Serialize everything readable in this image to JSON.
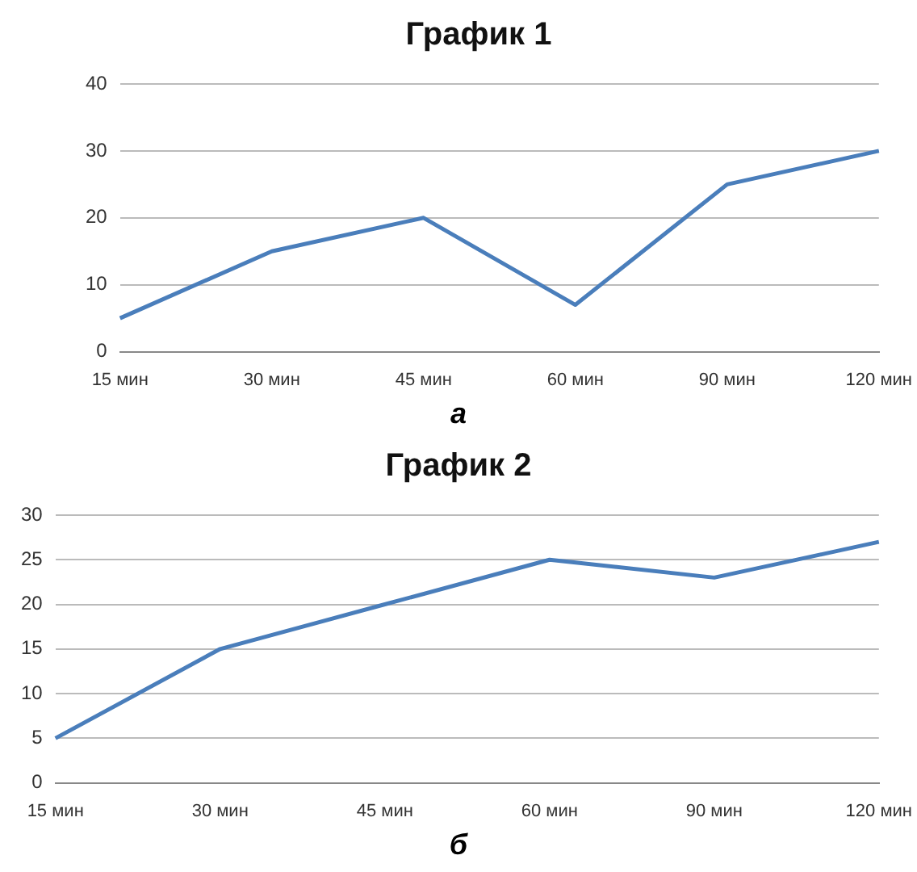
{
  "chart_data": [
    {
      "type": "line",
      "title": "График 1",
      "categories": [
        "15 мин",
        "30 мин",
        "45 мин",
        "60 мин",
        "90 мин",
        "120 мин"
      ],
      "series": [
        {
          "color": "#4a7ebb",
          "values": [
            5,
            15,
            20,
            7,
            25,
            30
          ]
        }
      ],
      "ylim": [
        0,
        40
      ],
      "yticks": [
        0,
        10,
        20,
        30,
        40
      ],
      "grid": "y",
      "annotations": [
        "а"
      ]
    },
    {
      "type": "line",
      "title": "График 2",
      "categories": [
        "15 мин",
        "30 мин",
        "45 мин",
        "60 мин",
        "90 мин",
        "120 мин"
      ],
      "series": [
        {
          "color": "#4a7ebb",
          "values": [
            5,
            15,
            20,
            25,
            23,
            27
          ]
        }
      ],
      "ylim": [
        0,
        30
      ],
      "yticks": [
        0,
        5,
        10,
        15,
        20,
        25,
        30
      ],
      "grid": "y",
      "annotations": [
        "б"
      ]
    }
  ]
}
